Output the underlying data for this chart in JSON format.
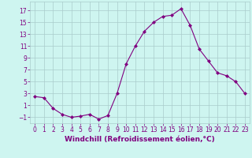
{
  "x": [
    0,
    1,
    2,
    3,
    4,
    5,
    6,
    7,
    8,
    9,
    10,
    11,
    12,
    13,
    14,
    15,
    16,
    17,
    18,
    19,
    20,
    21,
    22,
    23
  ],
  "y": [
    2.5,
    2.3,
    0.5,
    -0.5,
    -1.0,
    -0.8,
    -0.5,
    -1.3,
    -0.7,
    3.0,
    8.0,
    11.0,
    13.5,
    15.0,
    16.0,
    16.2,
    17.3,
    14.5,
    10.5,
    8.5,
    6.5,
    6.0,
    5.0,
    3.0
  ],
  "line_color": "#800080",
  "marker": "D",
  "marker_size": 2,
  "bg_color": "#cef5f0",
  "grid_color": "#aacccc",
  "xlabel": "Windchill (Refroidissement éolien,°C)",
  "xlabel_color": "#800080",
  "xlabel_fontsize": 6.5,
  "yticks": [
    -1,
    1,
    3,
    5,
    7,
    9,
    11,
    13,
    15,
    17
  ],
  "xticks": [
    0,
    1,
    2,
    3,
    4,
    5,
    6,
    7,
    8,
    9,
    10,
    11,
    12,
    13,
    14,
    15,
    16,
    17,
    18,
    19,
    20,
    21,
    22,
    23
  ],
  "ylim": [
    -2.0,
    18.5
  ],
  "xlim": [
    -0.5,
    23.5
  ],
  "tick_color": "#800080",
  "tick_fontsize": 5.5,
  "linewidth": 0.8
}
